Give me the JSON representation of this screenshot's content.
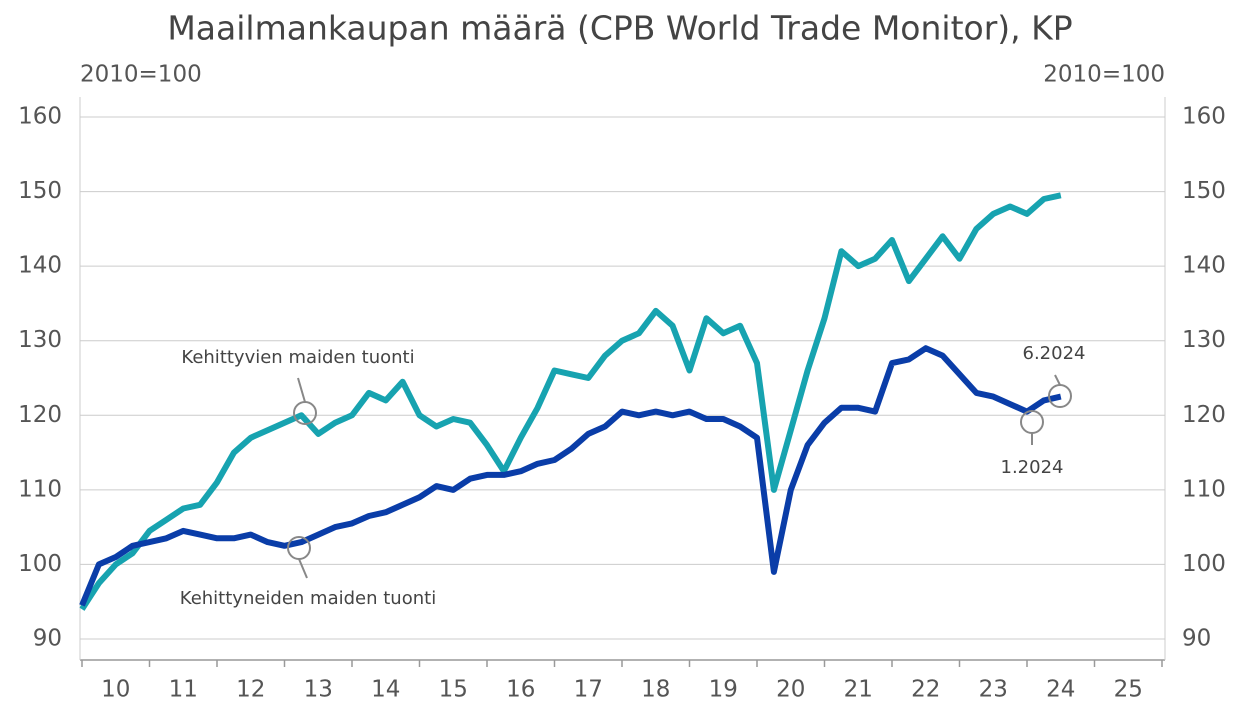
{
  "chart_data": {
    "type": "line",
    "title": "Maailmankaupan määrä (CPB World Trade Monitor), KP",
    "y_unit": "2010=100",
    "y2_unit": "2010=100",
    "x": [
      10.0,
      10.25,
      10.5,
      10.75,
      11.0,
      11.25,
      11.5,
      11.75,
      12.0,
      12.25,
      12.5,
      12.75,
      13.0,
      13.25,
      13.5,
      13.75,
      14.0,
      14.25,
      14.5,
      14.75,
      15.0,
      15.25,
      15.5,
      15.75,
      16.0,
      16.25,
      16.5,
      16.75,
      17.0,
      17.25,
      17.5,
      17.75,
      18.0,
      18.25,
      18.5,
      18.75,
      19.0,
      19.25,
      19.5,
      19.75,
      20.0,
      20.25,
      20.5,
      20.75,
      21.0,
      21.25,
      21.5,
      21.75,
      22.0,
      22.25,
      22.5,
      22.75,
      23.0,
      23.25,
      23.5,
      23.75,
      24.0,
      24.25,
      24.5
    ],
    "series": [
      {
        "name": "Kehittyvien maiden tuonti",
        "color": "#17a3b0",
        "values": [
          94,
          97.5,
          100,
          101.5,
          104.5,
          106,
          107.5,
          108,
          111,
          115,
          117,
          118,
          119,
          120,
          117.5,
          119,
          120,
          123,
          122,
          124.5,
          120,
          118.5,
          119.5,
          119,
          116,
          112.5,
          117,
          121,
          126,
          125.5,
          125,
          128,
          130,
          131,
          134,
          132,
          126,
          133,
          131,
          132,
          127,
          110,
          118,
          126,
          133,
          142,
          140,
          141,
          143.5,
          138,
          141,
          144,
          141,
          145,
          147,
          148,
          147,
          149,
          149.5
        ]
      },
      {
        "name": "Kehittyneiden maiden tuonti",
        "color": "#0a3da8",
        "values": [
          94.5,
          100,
          101,
          102.5,
          103,
          103.5,
          104.5,
          104,
          103.5,
          103.5,
          104,
          103,
          102.5,
          103,
          104,
          105,
          105.5,
          106.5,
          107,
          108,
          109,
          110.5,
          110,
          111.5,
          112,
          112,
          112.5,
          113.5,
          114,
          115.5,
          117.5,
          118.5,
          120.5,
          120,
          120.5,
          120,
          120.5,
          119.5,
          119.5,
          118.5,
          117,
          99,
          110,
          116,
          119,
          121,
          121,
          120.5,
          127,
          127.5,
          129,
          128,
          125.5,
          123,
          122.5,
          121.5,
          120.5,
          122,
          122.5
        ]
      }
    ],
    "annotations": [
      "Kehittyvien maiden tuonti",
      "Kehittyneiden maiden tuonti",
      "6.2024",
      "1.2024"
    ],
    "xlim": [
      10,
      26
    ],
    "xticks": [
      {
        "value": 10.5,
        "label": "10"
      },
      {
        "value": 11.5,
        "label": "11"
      },
      {
        "value": 12.5,
        "label": "12"
      },
      {
        "value": 13.5,
        "label": "13"
      },
      {
        "value": 14.5,
        "label": "14"
      },
      {
        "value": 15.5,
        "label": "15"
      },
      {
        "value": 16.5,
        "label": "16"
      },
      {
        "value": 17.5,
        "label": "17"
      },
      {
        "value": 18.5,
        "label": "18"
      },
      {
        "value": 19.5,
        "label": "19"
      },
      {
        "value": 20.5,
        "label": "20"
      },
      {
        "value": 21.5,
        "label": "21"
      },
      {
        "value": 22.5,
        "label": "22"
      },
      {
        "value": 23.5,
        "label": "23"
      },
      {
        "value": 24.5,
        "label": "24"
      },
      {
        "value": 25.5,
        "label": "25"
      }
    ],
    "ylim": [
      90,
      160
    ],
    "yticks": [
      90,
      100,
      110,
      120,
      130,
      140,
      150,
      160
    ],
    "y2lim": [
      90,
      160
    ],
    "y2ticks": [
      90,
      100,
      110,
      120,
      130,
      140,
      150,
      160
    ],
    "grid": true
  }
}
